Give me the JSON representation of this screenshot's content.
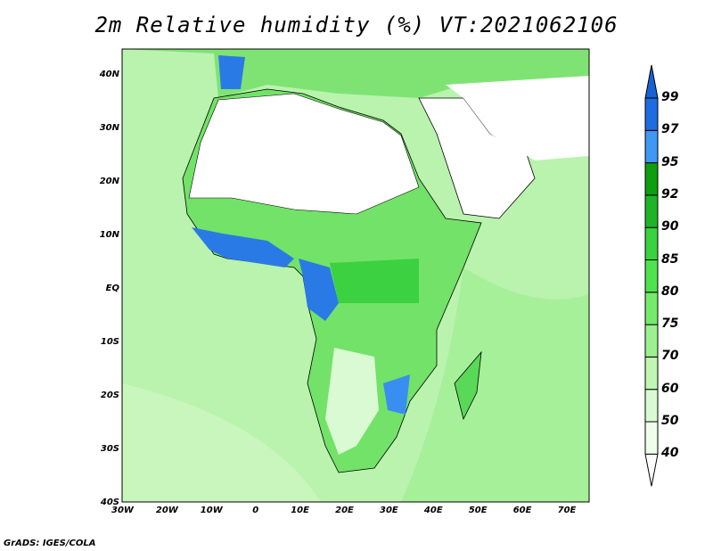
{
  "title": "2m Relative humidity (%) VT:2021062106",
  "credit": "GrADS: IGES/COLA",
  "lat_labels": [
    "40N",
    "30N",
    "20N",
    "10N",
    "EQ",
    "10S",
    "20S",
    "30S",
    "40S"
  ],
  "lon_labels": [
    "30W",
    "20W",
    "10W",
    "0",
    "10E",
    "20E",
    "30E",
    "40E",
    "50E",
    "60E",
    "70E"
  ],
  "colorbar": {
    "levels": [
      "40",
      "50",
      "60",
      "70",
      "75",
      "80",
      "85",
      "90",
      "92",
      "95",
      "97",
      "99"
    ],
    "colors": [
      "#ffffff",
      "#effdeb",
      "#d9fad2",
      "#bff6b4",
      "#9cf090",
      "#76ea6c",
      "#4ee24f",
      "#38d33e",
      "#1fb428",
      "#0e9e10",
      "#3f98f3",
      "#1e6de0",
      "#1662d4"
    ]
  },
  "map_colors": {
    "ocean": "#b8f3ad",
    "land": "#6fe064",
    "dry": "#ffffff",
    "wet": "#2a7ae6"
  }
}
